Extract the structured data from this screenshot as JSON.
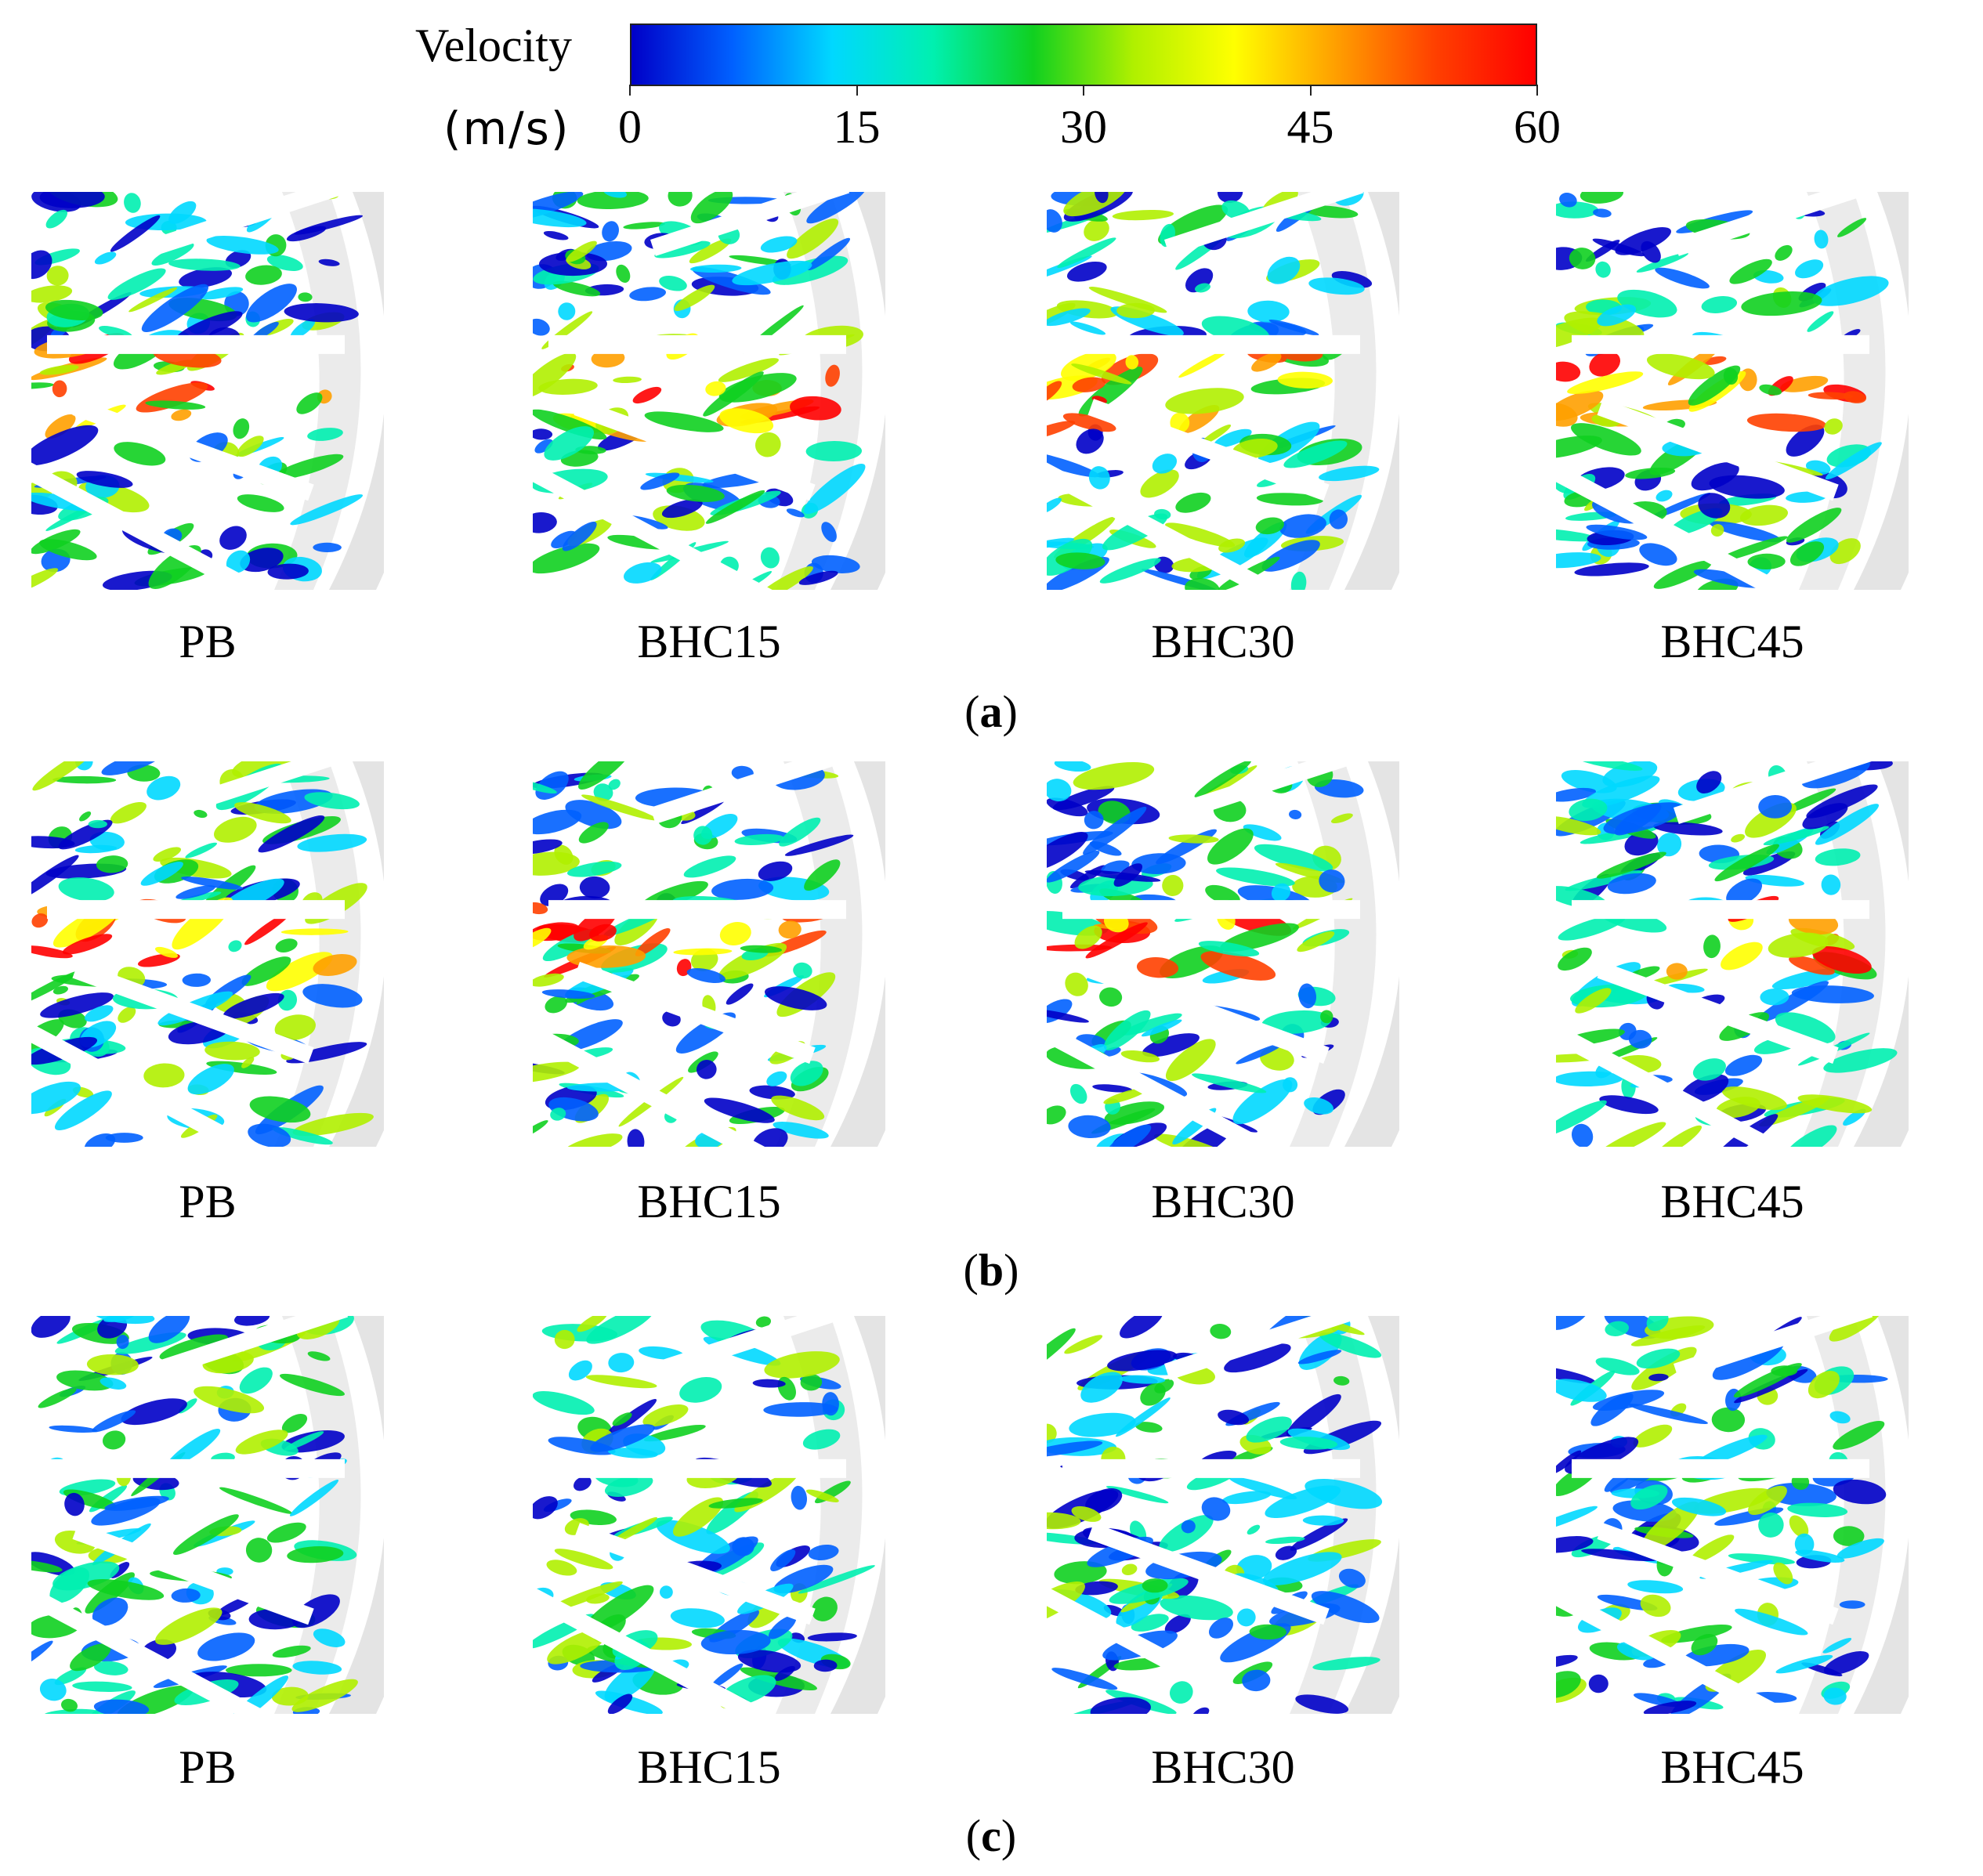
{
  "colorbar": {
    "title": "Velocity",
    "unit": "(m/s)",
    "min": 0,
    "max": 60,
    "ticks": [
      "0",
      "15",
      "30",
      "45",
      "60"
    ],
    "colormap": [
      "#0000c8",
      "#0060ff",
      "#00d8ff",
      "#00f0b0",
      "#10d020",
      "#b0f000",
      "#ffff00",
      "#ffa000",
      "#ff4000",
      "#ff0000"
    ]
  },
  "rows": [
    {
      "label_open": "(",
      "label_letter": "a",
      "label_close": ")",
      "panels": [
        "PB",
        "BHC15",
        "BHC30",
        "BHC45"
      ]
    },
    {
      "label_open": "(",
      "label_letter": "b",
      "label_close": ")",
      "panels": [
        "PB",
        "BHC15",
        "BHC30",
        "BHC45"
      ]
    },
    {
      "label_open": "(",
      "label_letter": "c",
      "label_close": ")",
      "panels": [
        "PB",
        "BHC15",
        "BHC30",
        "BHC45"
      ]
    }
  ]
}
